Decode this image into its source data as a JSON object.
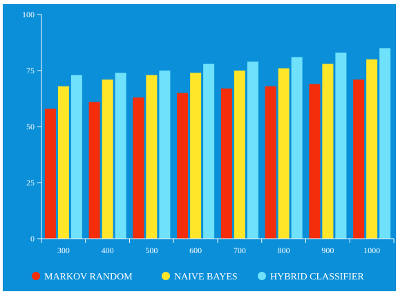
{
  "chart_data": {
    "type": "bar",
    "categories": [
      "300",
      "400",
      "500",
      "600",
      "700",
      "800",
      "900",
      "1000"
    ],
    "series": [
      {
        "name": "MARKOV RANDOM",
        "color": "#f42d0a",
        "values": [
          58,
          61,
          63,
          65,
          67,
          68,
          69,
          71
        ]
      },
      {
        "name": "NAIVE BAYES",
        "color": "#ffe629",
        "values": [
          68,
          71,
          73,
          74,
          75,
          76,
          78,
          80
        ]
      },
      {
        "name": "HYBRID CLASSIFIER",
        "color": "#6fe1fb",
        "values": [
          73,
          74,
          75,
          78,
          79,
          81,
          83,
          85
        ]
      }
    ],
    "yticks": [
      "0",
      "25",
      "50",
      "75",
      "100"
    ],
    "ylim": [
      0,
      100
    ],
    "title": "",
    "xlabel": "",
    "ylabel": "",
    "legend": "bottom-left",
    "grid": false,
    "background": "#0a8fd8",
    "axis_color": "#ffffff"
  }
}
